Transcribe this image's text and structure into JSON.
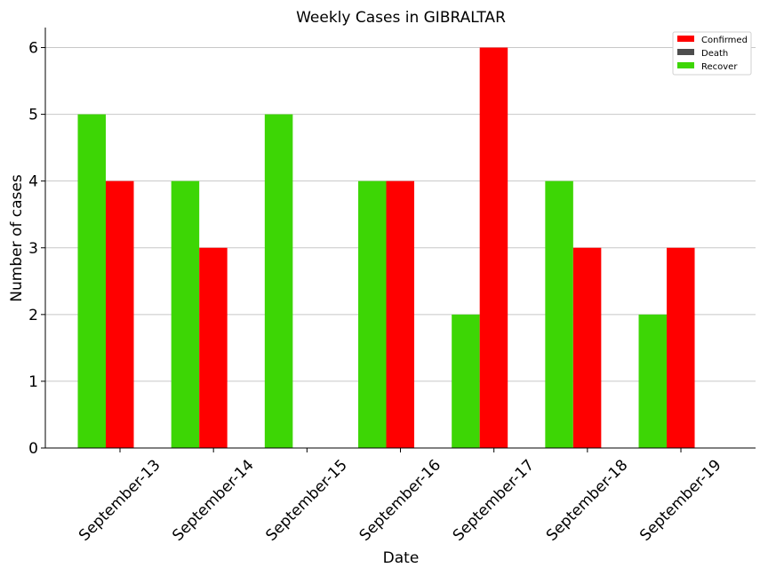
{
  "chart_data": {
    "type": "bar",
    "title": "Weekly Cases in GIBRALTAR",
    "xlabel": "Date",
    "ylabel": "Number of cases",
    "categories": [
      "September-13",
      "September-14",
      "September-15",
      "September-16",
      "September-17",
      "September-18",
      "September-19"
    ],
    "series": [
      {
        "name": "Recover",
        "color": "#3dd605",
        "values": [
          5,
          4,
          5,
          4,
          2,
          4,
          2
        ]
      },
      {
        "name": "Confirmed",
        "color": "#ff0000",
        "values": [
          4,
          3,
          0,
          4,
          6,
          3,
          3
        ]
      },
      {
        "name": "Death",
        "color": "#4d4d4d",
        "values": [
          0,
          0,
          0,
          0,
          0,
          0,
          0
        ]
      }
    ],
    "legend": [
      {
        "name": "Confirmed",
        "color": "#ff0000"
      },
      {
        "name": "Death",
        "color": "#4d4d4d"
      },
      {
        "name": "Recover",
        "color": "#3dd605"
      }
    ],
    "yticks": [
      0,
      1,
      2,
      3,
      4,
      5,
      6
    ],
    "ylim": [
      0,
      6.3
    ],
    "grid": "horizontal",
    "legend_position": "top-right"
  }
}
